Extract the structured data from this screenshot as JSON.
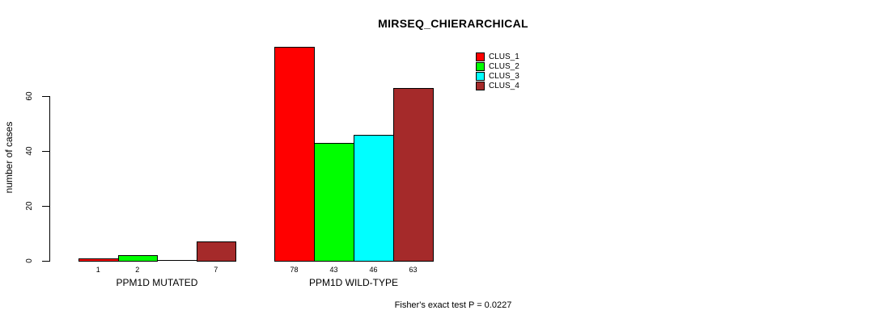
{
  "chart_data": {
    "type": "bar",
    "title": "MIRSEQ_CHIERARCHICAL",
    "ylabel": "number of cases",
    "xlabel": "",
    "annotation": "Fisher's exact test P = 0.0227",
    "yticks": [
      0,
      20,
      40,
      60
    ],
    "ylim": [
      0,
      78
    ],
    "grid": false,
    "legend_position": "top-right",
    "series": [
      {
        "name": "CLUS_1",
        "color": "#ff0000"
      },
      {
        "name": "CLUS_2",
        "color": "#00ff00"
      },
      {
        "name": "CLUS_3",
        "color": "#00ffff"
      },
      {
        "name": "CLUS_4",
        "color": "#a52a2a"
      }
    ],
    "groups": [
      {
        "label": "PPM1D MUTATED",
        "values": [
          1,
          2,
          0,
          7
        ],
        "bar_labels": [
          "1",
          "2",
          "",
          "7"
        ]
      },
      {
        "label": "PPM1D WILD-TYPE",
        "values": [
          78,
          43,
          46,
          63
        ],
        "bar_labels": [
          "78",
          "43",
          "46",
          "63"
        ]
      }
    ]
  }
}
